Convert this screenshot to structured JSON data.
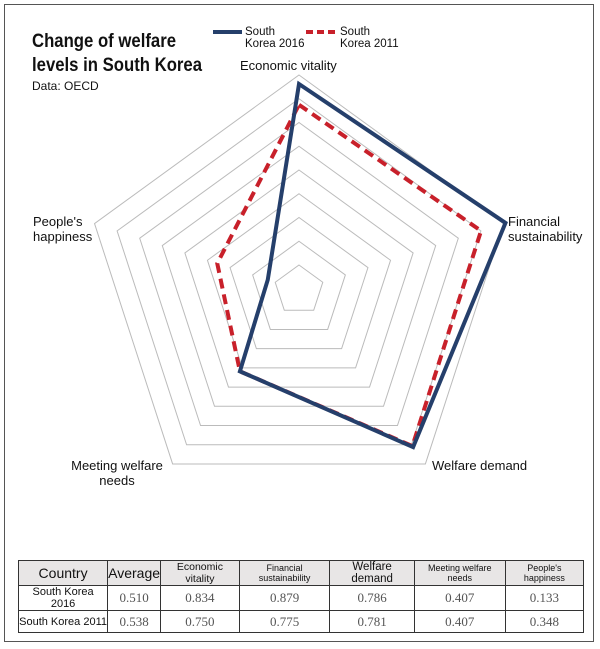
{
  "chart_data": {
    "type": "radar",
    "title": "Change of welfare levels in South Korea",
    "source": "Data: OECD",
    "axes": [
      "Economic vitality",
      "Financial sustainability",
      "Welfare demand",
      "Meeting welfare needs",
      "People's happiness"
    ],
    "series": [
      {
        "name": "South Korea 2016",
        "color": "#253f6b",
        "style": "solid",
        "values": [
          0.834,
          0.879,
          0.786,
          0.407,
          0.133
        ]
      },
      {
        "name": "South Korea 2011",
        "color": "#c8202a",
        "style": "dashed",
        "values": [
          0.75,
          0.775,
          0.781,
          0.407,
          0.348
        ]
      }
    ],
    "legend": "top",
    "grid": true
  },
  "legend": {
    "s2016": "South Korea 2016",
    "s2011": "South Korea 2011"
  },
  "axis_labels": {
    "econ": "Economic vitality",
    "fin": "Financial sustainability",
    "wd": "Welfare demand",
    "mwn": "Meeting welfare needs",
    "hap": "People's happiness"
  },
  "table": {
    "headers": [
      "Country",
      "Average",
      "Economic vitality",
      "Financial sustainability",
      "Welfare demand",
      "Meeting welfare needs",
      "People's happiness"
    ],
    "rows": [
      [
        "South Korea 2016",
        "0.510",
        "0.834",
        "0.879",
        "0.786",
        "0.407",
        "0.133"
      ],
      [
        "South Korea 2011",
        "0.538",
        "0.750",
        "0.775",
        "0.781",
        "0.407",
        "0.348"
      ]
    ]
  }
}
